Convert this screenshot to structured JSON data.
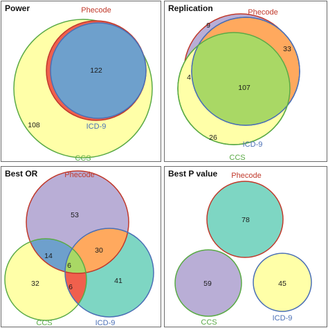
{
  "panels": {
    "power": {
      "title": "Power",
      "labels": {
        "phecode": "Phecode",
        "icd9": "ICD-9",
        "ccs": "CCS"
      },
      "counts": {
        "all_three": "122",
        "ccs_only": "108"
      }
    },
    "replication": {
      "title": "Replication",
      "labels": {
        "phecode": "Phecode",
        "icd9": "ICD-9",
        "ccs": "CCS"
      },
      "counts": {
        "phecode_only": "9",
        "phecode_icd9": "33",
        "phecode_ccs": "4",
        "all_three": "107",
        "ccs_only": "26"
      }
    },
    "best_or": {
      "title": "Best OR",
      "labels": {
        "phecode": "Phecode",
        "icd9": "ICD-9",
        "ccs": "CCS"
      },
      "counts": {
        "phecode_only": "53",
        "phecode_ccs": "14",
        "phecode_icd9": "30",
        "all_three": "6",
        "ccs_only": "32",
        "icd9_only": "41",
        "ccs_icd9": "6"
      }
    },
    "best_p": {
      "title": "Best P value",
      "labels": {
        "phecode": "Phecode",
        "icd9": "ICD-9",
        "ccs": "CCS"
      },
      "counts": {
        "phecode_only": "78",
        "ccs_only": "59",
        "icd9_only": "45"
      }
    }
  },
  "colors": {
    "phecode_stroke": "#c0392b",
    "icd9_stroke": "#4a6fb5",
    "ccs_stroke": "#5aaa46",
    "yellow": "#ffffa8",
    "blue": "#6ea0cc",
    "lavender": "#b9aed6",
    "orange": "#ffa95e",
    "green": "#a9d865",
    "teal": "#7ed6c3",
    "red": "#f0604d"
  }
}
